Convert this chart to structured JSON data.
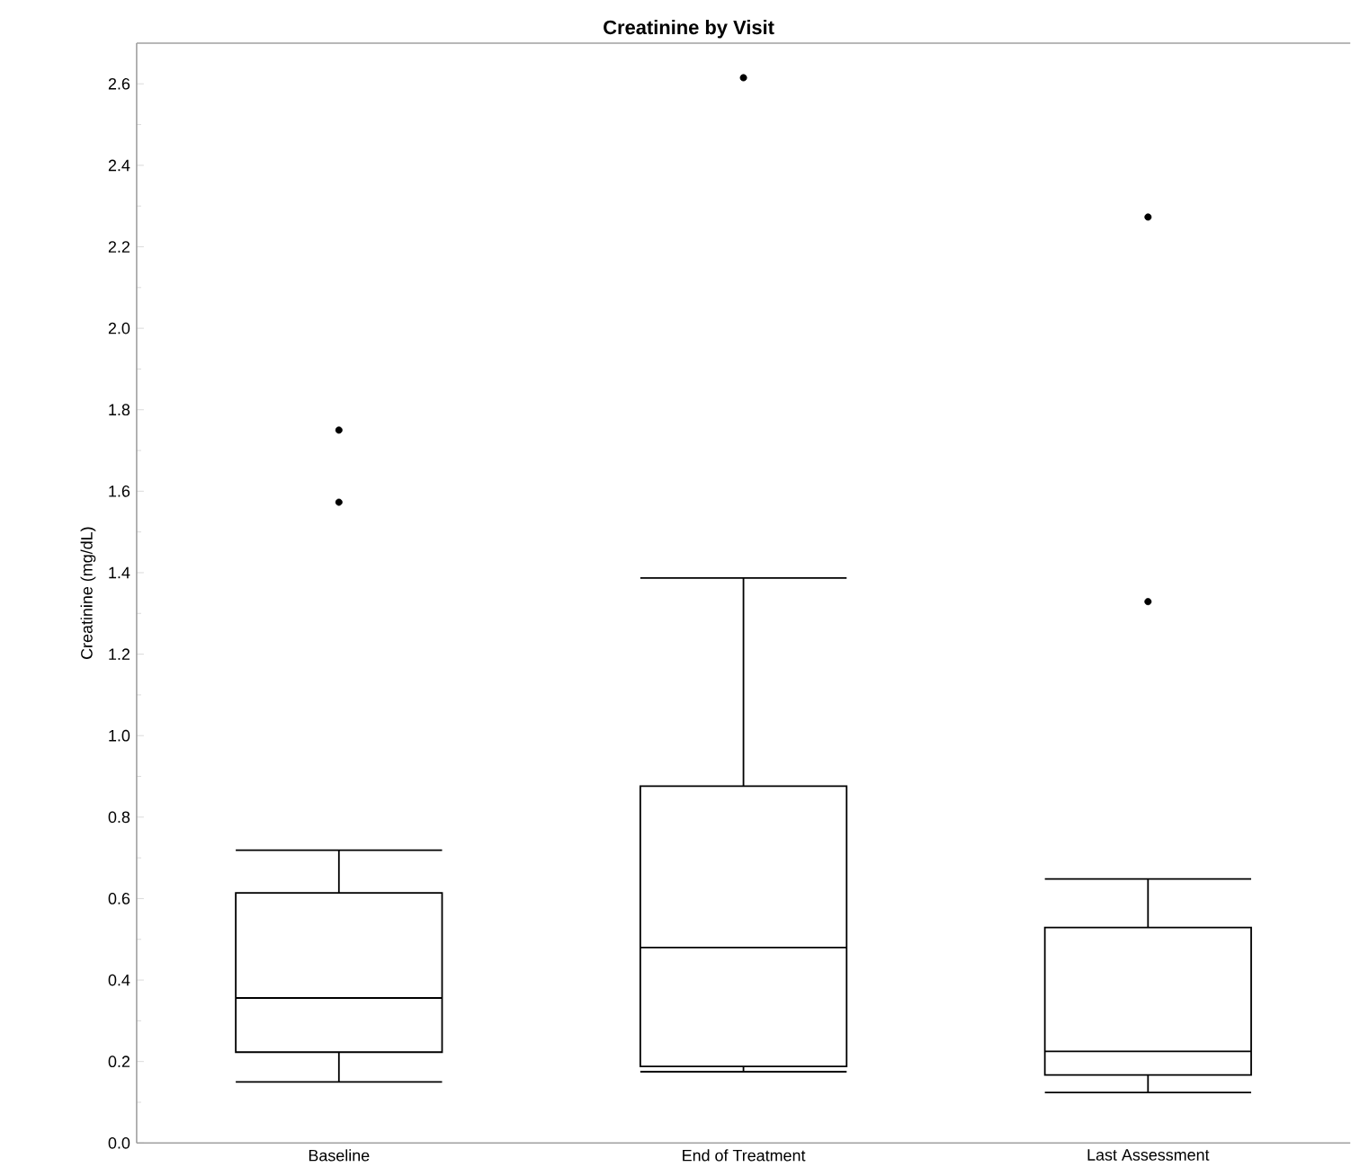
{
  "chart_data": {
    "type": "box",
    "title": "Creatinine by Visit",
    "ylabel": "Creatinine (mg/dL)",
    "categories": [
      "Baseline",
      "End of Treatment",
      "Last Assessment"
    ],
    "color": "#000000",
    "boxes": [
      {
        "low": 0.15,
        "q1": 0.223,
        "median": 0.356,
        "q3": 0.614,
        "high": 0.719,
        "outliers": [
          1.75,
          1.573
        ]
      },
      {
        "low": 0.175,
        "q1": 0.188,
        "median": 0.48,
        "q3": 0.876,
        "high": 1.387,
        "outliers": [
          2.615
        ]
      },
      {
        "low": 0.124,
        "q1": 0.167,
        "median": 0.225,
        "q3": 0.529,
        "high": 0.648,
        "outliers": [
          2.273,
          1.329
        ]
      }
    ],
    "ylim": [
      0,
      2.7
    ],
    "yticks": [
      {
        "value": 0,
        "label": "0.0"
      },
      {
        "value": 0.2,
        "label": "0.2"
      },
      {
        "value": 0.4,
        "label": "0.4"
      },
      {
        "value": 0.6,
        "label": "0.6"
      },
      {
        "value": 0.8,
        "label": "0.8"
      },
      {
        "value": 1.0,
        "label": "1.0"
      },
      {
        "value": 1.2,
        "label": "1.2"
      },
      {
        "value": 1.4,
        "label": "1.4"
      },
      {
        "value": 1.6,
        "label": "1.6"
      },
      {
        "value": 1.8,
        "label": "1.8"
      },
      {
        "value": 2.0,
        "label": "2.0"
      },
      {
        "value": 2.2,
        "label": "2.2"
      },
      {
        "value": 2.4,
        "label": "2.4"
      },
      {
        "value": 2.6,
        "label": "2.6"
      }
    ],
    "grid": false
  }
}
